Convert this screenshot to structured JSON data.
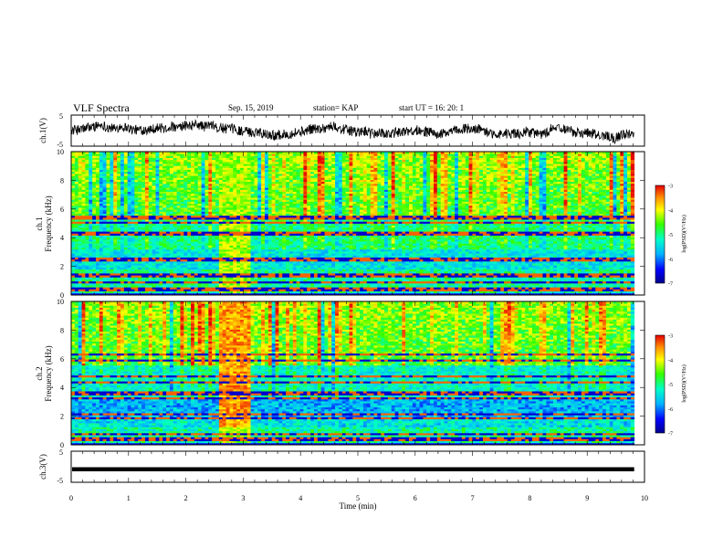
{
  "header": {
    "title": "VLF Spectra",
    "date": "Sep. 15, 2019",
    "station": "station= KAP",
    "start": "start UT = 16: 20: 1"
  },
  "chart_data": [
    {
      "type": "line",
      "name": "ch1-waveform",
      "ylabel": "ch.1(V)",
      "ylim": [
        -5,
        5
      ],
      "yticks": [
        "5",
        "-5"
      ],
      "xlim": [
        0,
        9.82
      ]
    },
    {
      "type": "heatmap",
      "name": "ch1-spectrogram",
      "ylabel": "ch.1\nFrequency (kHz)",
      "ylim": [
        0,
        10
      ],
      "yticks": [
        "0",
        "2",
        "4",
        "6",
        "8",
        "10"
      ],
      "xlim": [
        0,
        9.82
      ],
      "colorbar": {
        "label": "log(PSD)(V²/Hz)",
        "range": [
          -7,
          -3
        ],
        "ticks": [
          "-3",
          "-4",
          "-5",
          "-6",
          "-7"
        ]
      },
      "burst": {
        "t_start": 2.55,
        "t_end": 3.15
      }
    },
    {
      "type": "heatmap",
      "name": "ch2-spectrogram",
      "ylabel": "ch.2\nFrequency (kHz)",
      "ylim": [
        0,
        10
      ],
      "yticks": [
        "0",
        "2",
        "4",
        "6",
        "8",
        "10"
      ],
      "xlim": [
        0,
        9.82
      ],
      "colorbar": {
        "label": "log(PSD)(V²/Hz)",
        "range": [
          -7,
          -3
        ],
        "ticks": [
          "-3",
          "-4",
          "-5",
          "-6",
          "-7"
        ]
      },
      "burst": {
        "t_start": 2.55,
        "t_end": 3.15
      }
    },
    {
      "type": "line",
      "name": "ch3-waveform",
      "ylabel": "ch.3(V)",
      "ylim": [
        -5,
        5
      ],
      "yticks": [
        "5",
        "-5"
      ],
      "xlim": [
        0,
        9.82
      ],
      "value": -0.8
    }
  ],
  "xaxis": {
    "label": "Time (min)",
    "range": [
      0,
      10
    ],
    "ticks": [
      "0",
      "1",
      "2",
      "3",
      "4",
      "5",
      "6",
      "7",
      "8",
      "9",
      "10"
    ]
  },
  "colors": {
    "scale": [
      "#00008c",
      "#0000ff",
      "#00b4ff",
      "#00ffc8",
      "#33ff00",
      "#ffff00",
      "#ff8c00",
      "#e60000"
    ]
  }
}
